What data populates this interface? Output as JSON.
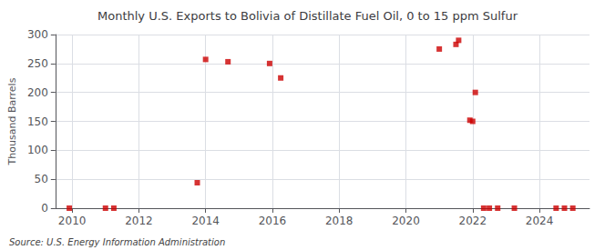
{
  "chart_data": {
    "type": "scatter",
    "title": "Monthly U.S. Exports to Bolivia of Distillate Fuel Oil, 0 to 15 ppm Sulfur",
    "ylabel": "Thousand Barrels",
    "annotations": [
      "Source: U.S. Energy Information Administration"
    ],
    "x": [
      2009.917,
      2011.0,
      2011.25,
      2013.75,
      2014.0,
      2014.67,
      2015.917,
      2016.25,
      2021.0,
      2021.5,
      2021.58,
      2021.917,
      2022.0,
      2022.08,
      2022.33,
      2022.5,
      2022.75,
      2023.25,
      2024.5,
      2024.75,
      2025.0
    ],
    "values": [
      0,
      0,
      0,
      44,
      257,
      253,
      250,
      225,
      275,
      283,
      290,
      152,
      150,
      200,
      0,
      0,
      0,
      0,
      0,
      0,
      0
    ],
    "color": "#cc0000",
    "marker": "square",
    "xlim": [
      2009.5,
      2025.5
    ],
    "xticks": [
      2010,
      2012,
      2014,
      2016,
      2018,
      2020,
      2022,
      2024
    ],
    "ylim": [
      0,
      300
    ],
    "yticks": [
      0,
      50,
      100,
      150,
      200,
      250,
      300
    ],
    "grid": true
  }
}
